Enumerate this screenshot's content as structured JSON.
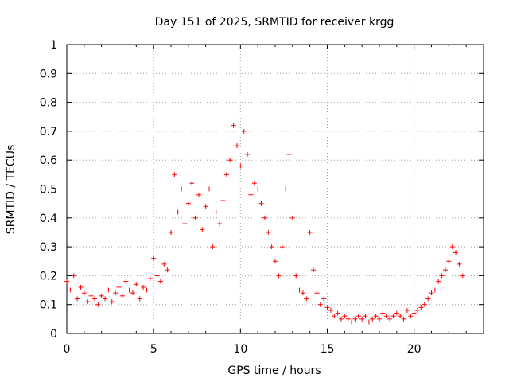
{
  "chart_data": {
    "type": "scatter",
    "title": "Day 151 of 2025, SRMTID for receiver krgg",
    "xlabel": "GPS time / hours",
    "ylabel": "SRMTID / TECUs",
    "xlim": [
      0,
      24
    ],
    "ylim": [
      0,
      1
    ],
    "x_ticks": [
      0,
      5,
      10,
      15,
      20
    ],
    "x_tick_labels": [
      "0",
      "5",
      "10",
      "15",
      "20"
    ],
    "y_ticks": [
      0,
      0.1,
      0.2,
      0.3,
      0.4,
      0.5,
      0.6,
      0.7,
      0.8,
      0.9,
      1
    ],
    "y_tick_labels": [
      "0",
      "0.1",
      "0.2",
      "0.3",
      "0.4",
      "0.5",
      "0.6",
      "0.7",
      "0.8",
      "0.9",
      "1"
    ],
    "grid": true,
    "marker": "+",
    "marker_color": "#ff0000",
    "series": [
      {
        "name": "SRMTID",
        "x": [
          0.0,
          0.2,
          0.4,
          0.6,
          0.8,
          1.0,
          1.2,
          1.4,
          1.6,
          1.8,
          2.0,
          2.2,
          2.4,
          2.6,
          2.8,
          3.0,
          3.2,
          3.4,
          3.6,
          3.8,
          4.0,
          4.2,
          4.4,
          4.6,
          4.8,
          5.0,
          5.2,
          5.4,
          5.6,
          5.8,
          6.0,
          6.2,
          6.4,
          6.6,
          6.8,
          7.0,
          7.2,
          7.4,
          7.6,
          7.8,
          8.0,
          8.2,
          8.4,
          8.6,
          8.8,
          9.0,
          9.2,
          9.4,
          9.6,
          9.8,
          10.0,
          10.2,
          10.4,
          10.6,
          10.8,
          11.0,
          11.2,
          11.4,
          11.6,
          11.8,
          12.0,
          12.2,
          12.4,
          12.6,
          12.8,
          13.0,
          13.2,
          13.4,
          13.6,
          13.8,
          14.0,
          14.2,
          14.4,
          14.6,
          14.8,
          15.0,
          15.2,
          15.4,
          15.6,
          15.8,
          16.0,
          16.2,
          16.4,
          16.6,
          16.8,
          17.0,
          17.2,
          17.4,
          17.6,
          17.8,
          18.0,
          18.2,
          18.4,
          18.6,
          18.8,
          19.0,
          19.2,
          19.4,
          19.6,
          19.8,
          20.0,
          20.2,
          20.4,
          20.6,
          20.8,
          21.0,
          21.2,
          21.4,
          21.6,
          21.8,
          22.0,
          22.2,
          22.4,
          22.6,
          22.8
        ],
        "y": [
          0.18,
          0.15,
          0.2,
          0.12,
          0.16,
          0.14,
          0.11,
          0.13,
          0.12,
          0.1,
          0.13,
          0.12,
          0.15,
          0.11,
          0.14,
          0.16,
          0.13,
          0.18,
          0.15,
          0.14,
          0.17,
          0.12,
          0.16,
          0.15,
          0.19,
          0.26,
          0.2,
          0.18,
          0.24,
          0.22,
          0.35,
          0.55,
          0.42,
          0.5,
          0.38,
          0.45,
          0.52,
          0.4,
          0.48,
          0.36,
          0.44,
          0.5,
          0.3,
          0.42,
          0.38,
          0.46,
          0.55,
          0.6,
          0.72,
          0.65,
          0.58,
          0.7,
          0.62,
          0.48,
          0.52,
          0.5,
          0.45,
          0.4,
          0.35,
          0.3,
          0.25,
          0.2,
          0.3,
          0.5,
          0.62,
          0.4,
          0.2,
          0.15,
          0.14,
          0.12,
          0.35,
          0.22,
          0.14,
          0.1,
          0.12,
          0.09,
          0.08,
          0.06,
          0.07,
          0.05,
          0.06,
          0.05,
          0.04,
          0.05,
          0.06,
          0.05,
          0.06,
          0.04,
          0.05,
          0.06,
          0.05,
          0.07,
          0.06,
          0.05,
          0.06,
          0.07,
          0.06,
          0.05,
          0.08,
          0.06,
          0.07,
          0.08,
          0.09,
          0.1,
          0.12,
          0.14,
          0.15,
          0.18,
          0.2,
          0.22,
          0.25,
          0.3,
          0.28,
          0.24,
          0.2
        ]
      }
    ]
  }
}
